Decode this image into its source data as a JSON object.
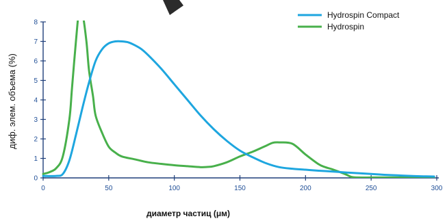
{
  "chart_data": {
    "type": "line",
    "xlabel": "диаметр частиц (μм)",
    "ylabel": "диф. элем. объема (%)",
    "xlim": [
      0,
      300
    ],
    "ylim": [
      0,
      8
    ],
    "xticks": [
      0,
      50,
      100,
      150,
      200,
      250,
      300
    ],
    "yticks": [
      0,
      1,
      2,
      3,
      4,
      5,
      6,
      7,
      8
    ],
    "grid": false,
    "legend_position": "top-right",
    "series": [
      {
        "name": "Hydrospin Compact",
        "color": "#1ea6df",
        "x": [
          0,
          10,
          15,
          20,
          25,
          30,
          35,
          40,
          45,
          50,
          55,
          60,
          65,
          70,
          75,
          80,
          90,
          100,
          110,
          120,
          130,
          140,
          150,
          160,
          170,
          180,
          190,
          200,
          210,
          220,
          230,
          240,
          250,
          260,
          270,
          280,
          290,
          298
        ],
        "y": [
          0.1,
          0.1,
          0.2,
          0.9,
          2.2,
          3.6,
          4.9,
          6.0,
          6.6,
          6.9,
          7.0,
          7.0,
          6.95,
          6.8,
          6.6,
          6.3,
          5.6,
          4.8,
          4.0,
          3.2,
          2.5,
          1.9,
          1.4,
          1.05,
          0.75,
          0.55,
          0.47,
          0.42,
          0.37,
          0.33,
          0.28,
          0.24,
          0.2,
          0.16,
          0.13,
          0.1,
          0.08,
          0.07
        ]
      },
      {
        "name": "Hydrospin",
        "color": "#48b04b",
        "x": [
          0,
          5,
          10,
          15,
          20,
          22,
          25,
          28,
          30,
          33,
          35,
          38,
          40,
          45,
          50,
          55,
          60,
          70,
          80,
          90,
          100,
          110,
          120,
          125,
          130,
          140,
          150,
          160,
          170,
          175,
          180,
          190,
          200,
          210,
          215,
          220,
          230,
          235,
          240,
          250,
          260,
          270,
          280,
          290,
          298
        ],
        "y": [
          0.2,
          0.3,
          0.5,
          1.1,
          3.0,
          4.6,
          7.0,
          9.0,
          8.5,
          7.0,
          5.5,
          4.2,
          3.2,
          2.3,
          1.6,
          1.3,
          1.1,
          0.95,
          0.8,
          0.72,
          0.65,
          0.6,
          0.55,
          0.56,
          0.6,
          0.8,
          1.1,
          1.35,
          1.65,
          1.8,
          1.82,
          1.75,
          1.2,
          0.7,
          0.55,
          0.45,
          0.2,
          0.05,
          0.02,
          0.02,
          0.02,
          0.02,
          0.02,
          0.02,
          0.02
        ]
      }
    ]
  }
}
